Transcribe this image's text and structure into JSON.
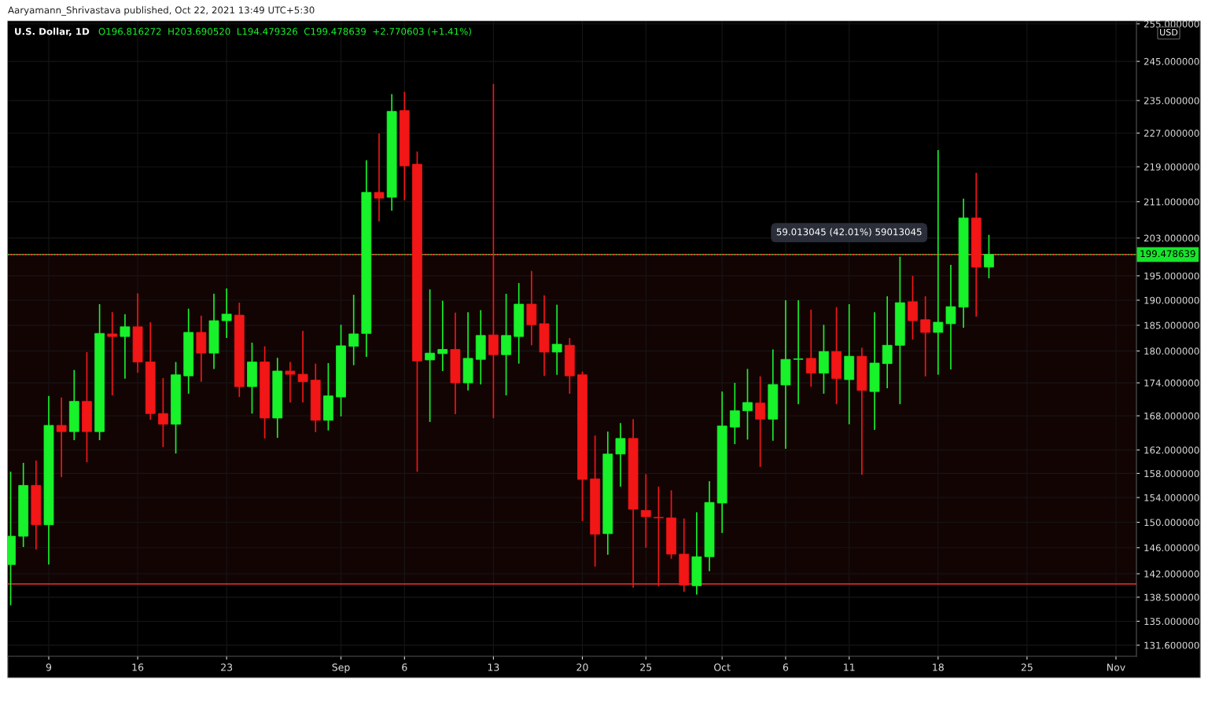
{
  "chart_data": {
    "type": "candlestick",
    "title": "U.S. Dollar, 1D",
    "x": [
      "2021-08-06",
      "2021-08-07",
      "2021-08-08",
      "2021-08-09",
      "2021-08-10",
      "2021-08-11",
      "2021-08-12",
      "2021-08-13",
      "2021-08-14",
      "2021-08-15",
      "2021-08-16",
      "2021-08-17",
      "2021-08-18",
      "2021-08-19",
      "2021-08-20",
      "2021-08-21",
      "2021-08-22",
      "2021-08-23",
      "2021-08-24",
      "2021-08-25",
      "2021-08-26",
      "2021-08-27",
      "2021-08-28",
      "2021-08-29",
      "2021-08-30",
      "2021-08-31",
      "2021-09-01",
      "2021-09-02",
      "2021-09-03",
      "2021-09-04",
      "2021-09-05",
      "2021-09-06",
      "2021-09-07",
      "2021-09-08",
      "2021-09-09",
      "2021-09-10",
      "2021-09-11",
      "2021-09-12",
      "2021-09-13",
      "2021-09-14",
      "2021-09-15",
      "2021-09-16",
      "2021-09-17",
      "2021-09-18",
      "2021-09-19",
      "2021-09-20",
      "2021-09-21",
      "2021-09-22",
      "2021-09-23",
      "2021-09-24",
      "2021-09-25",
      "2021-09-26",
      "2021-09-27",
      "2021-09-28",
      "2021-09-29",
      "2021-09-30",
      "2021-10-01",
      "2021-10-02",
      "2021-10-03",
      "2021-10-04",
      "2021-10-05",
      "2021-10-06",
      "2021-10-07",
      "2021-10-08",
      "2021-10-09",
      "2021-10-10",
      "2021-10-11",
      "2021-10-12",
      "2021-10-13",
      "2021-10-14",
      "2021-10-15",
      "2021-10-16",
      "2021-10-17",
      "2021-10-18",
      "2021-10-19",
      "2021-10-20",
      "2021-10-21",
      "2021-10-22"
    ],
    "ohlc": [
      [
        143.4,
        158.3,
        137.3,
        147.8
      ],
      [
        147.8,
        159.8,
        146.1,
        156.0
      ],
      [
        156.0,
        160.2,
        145.7,
        149.6
      ],
      [
        149.6,
        171.6,
        143.4,
        166.3
      ],
      [
        166.3,
        171.3,
        157.4,
        165.2
      ],
      [
        165.2,
        176.4,
        163.7,
        170.6
      ],
      [
        170.6,
        179.8,
        159.9,
        165.2
      ],
      [
        165.2,
        189.2,
        163.7,
        183.4
      ],
      [
        183.3,
        187.6,
        171.7,
        182.8
      ],
      [
        182.8,
        187.2,
        174.8,
        184.7
      ],
      [
        184.7,
        191.4,
        175.9,
        177.9
      ],
      [
        177.9,
        185.6,
        167.3,
        168.4
      ],
      [
        168.4,
        174.9,
        162.5,
        166.5
      ],
      [
        166.5,
        177.9,
        161.4,
        175.5
      ],
      [
        175.3,
        188.3,
        172.0,
        183.6
      ],
      [
        183.6,
        186.9,
        174.2,
        179.6
      ],
      [
        179.6,
        191.3,
        176.6,
        185.9
      ],
      [
        185.9,
        192.4,
        182.5,
        187.2
      ],
      [
        187.0,
        189.5,
        171.4,
        173.3
      ],
      [
        173.3,
        181.6,
        168.4,
        177.9
      ],
      [
        177.9,
        180.9,
        164.0,
        167.6
      ],
      [
        167.6,
        178.7,
        164.1,
        176.2
      ],
      [
        176.2,
        177.9,
        170.4,
        175.6
      ],
      [
        175.6,
        183.9,
        170.4,
        174.2
      ],
      [
        174.5,
        177.6,
        165.1,
        167.2
      ],
      [
        167.2,
        177.7,
        165.4,
        171.6
      ],
      [
        171.4,
        185.1,
        167.9,
        181.0
      ],
      [
        180.9,
        191.1,
        177.3,
        183.3
      ],
      [
        183.4,
        220.5,
        178.9,
        213.1
      ],
      [
        213.1,
        226.9,
        206.6,
        211.8
      ],
      [
        212.0,
        236.6,
        209.0,
        232.3
      ],
      [
        232.5,
        237.2,
        211.3,
        219.2
      ],
      [
        219.6,
        222.6,
        158.3,
        178.1
      ],
      [
        178.3,
        192.2,
        166.9,
        179.6
      ],
      [
        179.5,
        189.9,
        176.2,
        180.3
      ],
      [
        180.3,
        187.5,
        168.3,
        174.0
      ],
      [
        174.0,
        187.6,
        172.6,
        178.6
      ],
      [
        178.4,
        188.0,
        173.7,
        183.0
      ],
      [
        183.1,
        239.2,
        167.6,
        179.3
      ],
      [
        179.3,
        191.3,
        171.7,
        183.0
      ],
      [
        182.8,
        193.5,
        177.6,
        189.2
      ],
      [
        189.2,
        196.0,
        181.1,
        185.1
      ],
      [
        185.3,
        191.0,
        175.3,
        179.8
      ],
      [
        179.8,
        189.1,
        175.5,
        181.3
      ],
      [
        181.1,
        182.5,
        172.0,
        175.3
      ],
      [
        175.5,
        176.1,
        150.2,
        157.0
      ],
      [
        157.1,
        164.5,
        143.1,
        148.1
      ],
      [
        148.2,
        165.2,
        144.9,
        161.3
      ],
      [
        161.3,
        166.7,
        155.8,
        164.0
      ],
      [
        164.0,
        167.4,
        139.9,
        152.1
      ],
      [
        151.9,
        157.9,
        146.0,
        150.9
      ],
      [
        150.8,
        155.8,
        140.1,
        150.7
      ],
      [
        150.7,
        155.2,
        144.3,
        145.0
      ],
      [
        145.0,
        150.6,
        139.3,
        140.3
      ],
      [
        140.2,
        151.6,
        138.9,
        144.6
      ],
      [
        144.6,
        156.7,
        142.4,
        153.2
      ],
      [
        153.1,
        172.4,
        148.3,
        166.2
      ],
      [
        166.0,
        174.0,
        163.0,
        168.9
      ],
      [
        168.9,
        176.6,
        163.8,
        170.4
      ],
      [
        170.3,
        175.2,
        159.1,
        167.4
      ],
      [
        167.4,
        180.3,
        163.6,
        173.7
      ],
      [
        173.6,
        190.0,
        162.2,
        178.4
      ],
      [
        178.4,
        190.0,
        170.1,
        178.5
      ],
      [
        178.6,
        188.1,
        173.3,
        175.8
      ],
      [
        175.8,
        185.1,
        172.0,
        179.9
      ],
      [
        179.9,
        188.6,
        170.1,
        174.8
      ],
      [
        174.6,
        189.2,
        166.5,
        179.0
      ],
      [
        179.0,
        180.6,
        157.8,
        172.6
      ],
      [
        172.4,
        187.6,
        165.5,
        177.7
      ],
      [
        177.6,
        190.8,
        173.0,
        181.1
      ],
      [
        181.1,
        199.0,
        170.1,
        189.5
      ],
      [
        189.7,
        195.0,
        182.2,
        185.9
      ],
      [
        186.1,
        190.8,
        175.2,
        183.6
      ],
      [
        183.6,
        222.9,
        175.5,
        185.6
      ],
      [
        185.3,
        197.3,
        176.5,
        188.7
      ],
      [
        188.6,
        211.7,
        184.5,
        207.4
      ],
      [
        207.4,
        217.6,
        186.7,
        196.8
      ],
      [
        196.816272,
        203.69052,
        194.479326,
        199.478639
      ]
    ],
    "xlim": [
      "2021-08-05T18:45",
      "2021-11-02T14:40"
    ],
    "xticks": [
      {
        "value": "2021-08-09",
        "label": "9"
      },
      {
        "value": "2021-08-16",
        "label": "16"
      },
      {
        "value": "2021-08-23",
        "label": "23"
      },
      {
        "value": "2021-09-01",
        "label": "Sep"
      },
      {
        "value": "2021-09-06",
        "label": "6"
      },
      {
        "value": "2021-09-13",
        "label": "13"
      },
      {
        "value": "2021-09-20",
        "label": "20"
      },
      {
        "value": "2021-09-25",
        "label": "25"
      },
      {
        "value": "2021-10-01",
        "label": "Oct"
      },
      {
        "value": "2021-10-06",
        "label": "6"
      },
      {
        "value": "2021-10-11",
        "label": "11"
      },
      {
        "value": "2021-10-18",
        "label": "18"
      },
      {
        "value": "2021-10-25",
        "label": "25"
      },
      {
        "value": "2021-11-01",
        "label": "Nov"
      }
    ],
    "log": true,
    "ylim": [
      130.06,
      255.7
    ],
    "yticks": [
      {
        "value": 131.6,
        "label": "131.600000"
      },
      {
        "value": 135,
        "label": "135.000000"
      },
      {
        "value": 138.5,
        "label": "138.500000"
      },
      {
        "value": 142,
        "label": "142.000000"
      },
      {
        "value": 146,
        "label": "146.000000"
      },
      {
        "value": 150,
        "label": "150.000000"
      },
      {
        "value": 154,
        "label": "154.000000"
      },
      {
        "value": 158,
        "label": "158.000000"
      },
      {
        "value": 162,
        "label": "162.000000"
      },
      {
        "value": 168,
        "label": "168.000000"
      },
      {
        "value": 174,
        "label": "174.000000"
      },
      {
        "value": 180,
        "label": "180.000000"
      },
      {
        "value": 185,
        "label": "185.000000"
      },
      {
        "value": 190,
        "label": "190.000000"
      },
      {
        "value": 195,
        "label": "195.000000"
      },
      {
        "value": 203,
        "label": "203.000000"
      },
      {
        "value": 211,
        "label": "211.000000"
      },
      {
        "value": 219,
        "label": "219.000000"
      },
      {
        "value": 227,
        "label": "227.000000"
      },
      {
        "value": 235,
        "label": "235.000000"
      },
      {
        "value": 245,
        "label": "245.000000"
      },
      {
        "value": 255,
        "label": "255.000000"
      }
    ],
    "grid": true,
    "ref_lines": [
      {
        "axis": "y",
        "value": 140.465594,
        "color": "#f23030",
        "line_style": "solid"
      },
      {
        "axis": "y",
        "value": 199.478639,
        "color": "#f23030",
        "line_style": "solid"
      },
      {
        "axis": "y",
        "value": 199.478639,
        "label": "199.478639",
        "color": "#16e52a",
        "line_style": "dotted"
      }
    ],
    "bands": [
      {
        "axis": "y",
        "from": 140.465594,
        "to": 199.478639,
        "color": "#f23030"
      }
    ],
    "annotations": [
      "Aaryamann_Shrivastava published, Oct 22, 2021 13:49 UTC+5:30",
      "O196.816272  H203.690520  L194.479326  C199.478639  +2.770603 (+1.41%)",
      "USD",
      {
        "text": "59.013045 (42.01%) 59013045",
        "x": "2021-10-11",
        "y": 199.478639
      }
    ]
  }
}
